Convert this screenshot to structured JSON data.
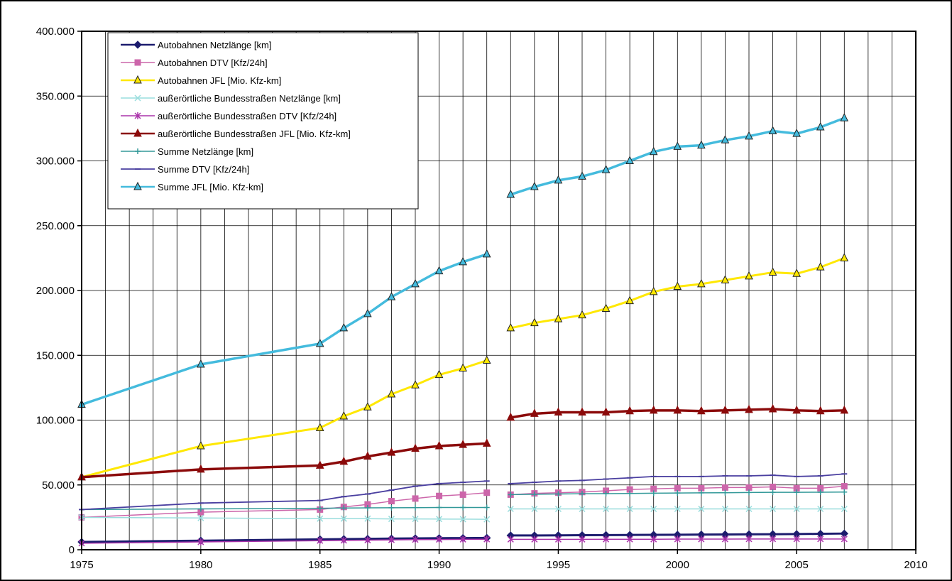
{
  "chart_data": {
    "type": "line",
    "title": "",
    "xlabel": "",
    "ylabel": "",
    "xlim": [
      1975,
      2010
    ],
    "ylim": [
      0,
      400000
    ],
    "x_ticks": [
      1975,
      1980,
      1985,
      1990,
      1995,
      2000,
      2005,
      2010
    ],
    "y_ticks": [
      0,
      50000,
      100000,
      150000,
      200000,
      250000,
      300000,
      350000,
      400000
    ],
    "x_tick_labels": [
      "1975",
      "1980",
      "1985",
      "1990",
      "1995",
      "2000",
      "2005",
      "2010"
    ],
    "y_tick_labels": [
      "0",
      "50.000",
      "100.000",
      "150.000",
      "200.000",
      "250.000",
      "300.000",
      "350.000",
      "400.000"
    ],
    "grid": true,
    "legend_position": "top-left",
    "x": [
      1975,
      1980,
      1985,
      1986,
      1987,
      1988,
      1989,
      1990,
      1991,
      1992,
      1993,
      1994,
      1995,
      1996,
      1997,
      1998,
      1999,
      2000,
      2001,
      2002,
      2003,
      2004,
      2005,
      2006,
      2007
    ],
    "series": [
      {
        "name": "Autobahnen Netzlänge [km]",
        "color": "#1c1c6e",
        "marker": "diamond",
        "values": [
          6000,
          7000,
          8000,
          8200,
          8400,
          8600,
          8800,
          8900,
          9000,
          9100,
          11000,
          11000,
          11100,
          11200,
          11300,
          11400,
          11500,
          11600,
          11700,
          11800,
          11900,
          12000,
          12100,
          12300,
          12500
        ]
      },
      {
        "name": "Autobahnen DTV [Kfz/24h]",
        "color": "#cc66aa",
        "marker": "square",
        "values": [
          25000,
          29000,
          31000,
          33000,
          35000,
          37500,
          39500,
          41500,
          42500,
          44000,
          42500,
          43500,
          44000,
          44500,
          45500,
          46500,
          47000,
          47500,
          47500,
          48000,
          48000,
          48500,
          47500,
          47500,
          49000
        ]
      },
      {
        "name": "Autobahnen JFL [Mio. Kfz-km]",
        "color": "#ffe800",
        "marker": "triangle",
        "values": [
          56000,
          80000,
          94000,
          103000,
          110000,
          120000,
          127000,
          135000,
          140000,
          146000,
          171000,
          175000,
          178000,
          181000,
          186000,
          192000,
          199000,
          203000,
          205000,
          208000,
          211000,
          214000,
          213000,
          218000,
          225000
        ]
      },
      {
        "name": "außerörtliche Bundesstraßen Netzlänge [km]",
        "color": "#99dddd",
        "marker": "x",
        "values": [
          25000,
          24500,
          24000,
          24000,
          24000,
          23800,
          23800,
          23700,
          23600,
          23500,
          31500,
          31500,
          31500,
          31500,
          31500,
          31500,
          31500,
          31500,
          31500,
          31500,
          31500,
          31500,
          31500,
          31500,
          31500
        ]
      },
      {
        "name": "außerörtliche Bundesstraßen DTV [Kfz/24h]",
        "color": "#aa33aa",
        "marker": "star",
        "values": [
          5000,
          6000,
          7000,
          7200,
          7400,
          7600,
          7800,
          7900,
          8000,
          8100,
          8000,
          8000,
          8000,
          8000,
          8100,
          8100,
          8100,
          8200,
          8200,
          8200,
          8300,
          8300,
          8300,
          8300,
          8300
        ]
      },
      {
        "name": "außerörtliche Bundesstraßen JFL [Mio. Kfz-km]",
        "color": "#8b0a0a",
        "marker": "triangle-filled",
        "values": [
          56000,
          62000,
          65000,
          68000,
          72000,
          75000,
          78000,
          80000,
          81000,
          82000,
          102000,
          105000,
          106000,
          106000,
          106000,
          107000,
          107500,
          107500,
          107000,
          107500,
          108000,
          108500,
          107500,
          107000,
          107500
        ]
      },
      {
        "name": "Summe Netzlänge [km]",
        "color": "#339999",
        "marker": "plus",
        "values": [
          31000,
          31500,
          32000,
          32200,
          32300,
          32400,
          32500,
          32600,
          32600,
          32600,
          42500,
          42800,
          43000,
          43200,
          43300,
          43400,
          43600,
          43800,
          43900,
          44000,
          44200,
          44300,
          44300,
          44400,
          44500
        ]
      },
      {
        "name": "Summe DTV [Kfz/24h]",
        "color": "#4a3fa0",
        "marker": "dash",
        "values": [
          31000,
          36000,
          38000,
          41000,
          43000,
          46000,
          49000,
          51000,
          52000,
          53000,
          51000,
          52000,
          53000,
          53500,
          54500,
          55500,
          56500,
          56500,
          56500,
          57000,
          57000,
          57500,
          56500,
          57000,
          58500
        ]
      },
      {
        "name": "Summe JFL [Mio. Kfz-km]",
        "color": "#44bbdd",
        "marker": "triangle",
        "values": [
          112000,
          143000,
          159000,
          171000,
          182000,
          195000,
          205000,
          215000,
          222000,
          228000,
          274000,
          280000,
          285000,
          288000,
          293000,
          300000,
          307000,
          311000,
          312000,
          316000,
          319000,
          323000,
          321000,
          326000,
          333000
        ]
      }
    ]
  }
}
